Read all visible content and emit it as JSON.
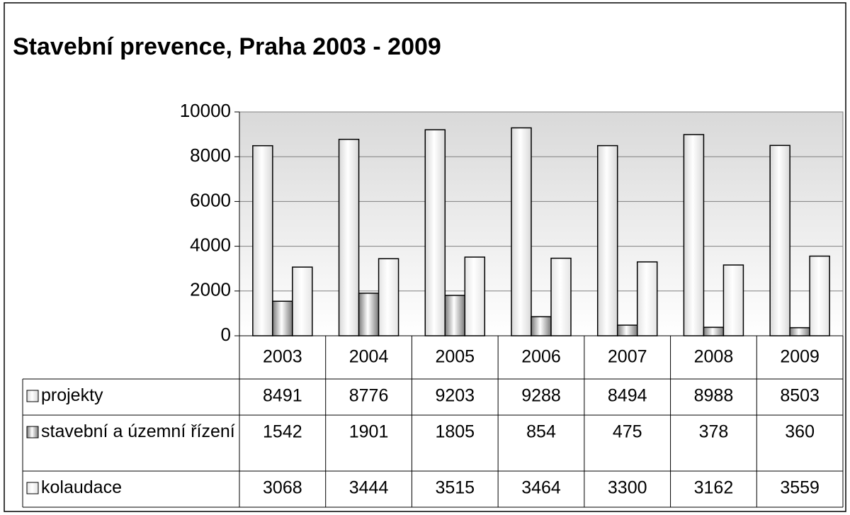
{
  "chart_data": {
    "type": "bar",
    "title": "Stavební prevence, Praha 2003 - 2009",
    "categories": [
      "2003",
      "2004",
      "2005",
      "2006",
      "2007",
      "2008",
      "2009"
    ],
    "series": [
      {
        "name": "projekty",
        "color": "#d8d8d8",
        "values": [
          8491,
          8776,
          9203,
          9288,
          8494,
          8988,
          8503
        ]
      },
      {
        "name": "stavební a územní řízení",
        "color": "#7a7a7a",
        "values": [
          1542,
          1901,
          1805,
          854,
          475,
          378,
          360
        ]
      },
      {
        "name": "kolaudace",
        "color": "#e4e4e4",
        "values": [
          3068,
          3444,
          3515,
          3464,
          3300,
          3162,
          3559
        ]
      }
    ],
    "ylim": [
      0,
      10000
    ],
    "yticks": [
      0,
      2000,
      4000,
      6000,
      8000,
      10000
    ],
    "grid": true
  }
}
